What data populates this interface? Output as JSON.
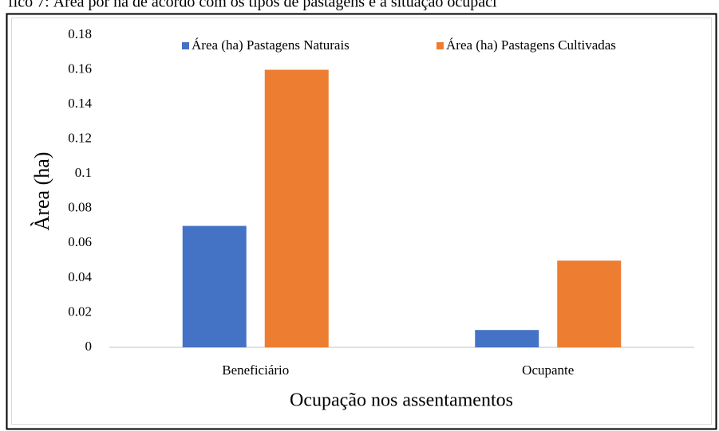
{
  "chart_data": {
    "type": "bar",
    "title": "fico 7: Área por ha de acordo com os tipos de pastagens e a situação ocupaci",
    "xlabel": "Ocupação nos assentamentos",
    "ylabel": "Àrea (ha)",
    "categories": [
      "Beneficiário",
      "Ocupante"
    ],
    "series": [
      {
        "name": "Área (ha) Pastagens Naturais",
        "color": "#4472c4",
        "values": [
          0.07,
          0.01
        ]
      },
      {
        "name": "Área (ha) Pastagens Cultivadas",
        "color": "#ed7d31",
        "values": [
          0.16,
          0.05
        ]
      }
    ],
    "ylim": [
      0,
      0.18
    ],
    "yticks": [
      0,
      0.02,
      0.04,
      0.06,
      0.08,
      0.1,
      0.12,
      0.14,
      0.16,
      0.18
    ],
    "grid": false,
    "legend": "top"
  }
}
